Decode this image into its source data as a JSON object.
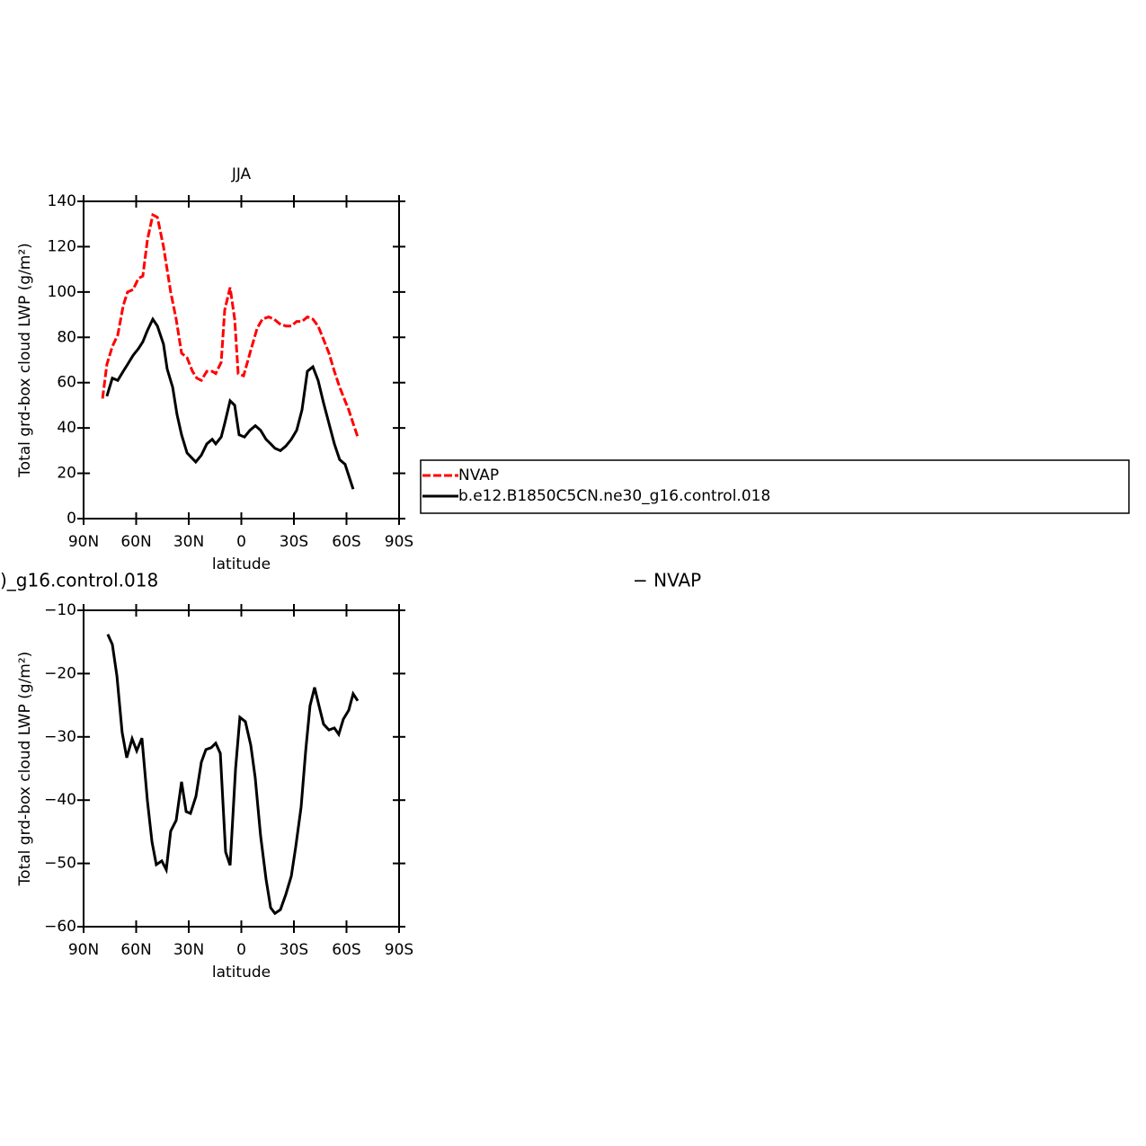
{
  "chart_data": [
    {
      "type": "line",
      "title": "JJA",
      "xlabel": "latitude",
      "ylabel": "Total grd-box cloud LWP (g/m²)",
      "xlim": [
        90,
        -90
      ],
      "xticks": [
        {
          "value": 90,
          "label": "90N"
        },
        {
          "value": 60,
          "label": "60N"
        },
        {
          "value": 30,
          "label": "30N"
        },
        0,
        {
          "value": -30,
          "label": "30S"
        },
        {
          "value": -60,
          "label": "60S"
        },
        {
          "value": -90,
          "label": "90S"
        }
      ],
      "ylim": [
        0,
        140
      ],
      "yticks": [
        0,
        20,
        40,
        60,
        80,
        100,
        120,
        140
      ],
      "legend": "right",
      "series": [
        {
          "name": "NVAP",
          "color": "#ff0000",
          "dash": true,
          "x": [
            79.2,
            76.7,
            73.6,
            70.5,
            67.4,
            64.9,
            61.8,
            58.7,
            56.2,
            53.6,
            50.5,
            47.9,
            44.4,
            40.3,
            37.2,
            34.1,
            31,
            27.9,
            25.4,
            22.8,
            19.7,
            16.6,
            14.6,
            11.5,
            9.5,
            6.4,
            3.8,
            1.8,
            -1.3,
            -4.9,
            -9,
            -12,
            -15.6,
            -18.7,
            -21.8,
            -25.4,
            -28.5,
            -31.6,
            -34.6,
            -37.7,
            -40.8,
            -43.8,
            -46.9,
            -50,
            -53.1,
            -56.1,
            -59.2,
            -61.3,
            -63.8,
            -66.4
          ],
          "values": [
            53,
            68,
            76,
            81,
            94,
            100,
            101,
            106,
            107,
            123,
            134,
            133,
            120,
            100,
            88,
            73,
            71,
            65,
            62,
            61,
            65,
            65,
            64,
            69,
            92,
            102,
            88,
            64,
            63,
            73,
            84,
            88,
            89,
            88,
            86,
            85,
            85,
            87,
            87,
            89,
            88,
            85,
            79,
            73,
            65,
            58,
            52,
            48,
            42,
            36
          ]
        },
        {
          "name": "b.e12.B1850C5CN.ne30_g16.control.018",
          "color": "#000000",
          "dash": false,
          "x": [
            76.7,
            73.6,
            70.5,
            67.4,
            64.9,
            61.8,
            58.7,
            56.2,
            53.6,
            50.5,
            47.9,
            44.4,
            42.3,
            39.2,
            36.7,
            34.1,
            31,
            28.5,
            26,
            22.8,
            19.7,
            16.6,
            14.6,
            11.5,
            9.5,
            6.4,
            3.8,
            1.3,
            -1.8,
            -4.9,
            -8,
            -11,
            -14.1,
            -16.7,
            -19.2,
            -22.3,
            -25.4,
            -28.5,
            -31.6,
            -34.6,
            -37.7,
            -40.8,
            -43.8,
            -46.9,
            -50,
            -53.1,
            -56.1,
            -59.2,
            -61.3,
            -63.8
          ],
          "values": [
            54,
            62,
            61,
            65,
            68,
            72,
            75,
            78,
            83,
            88,
            85,
            77,
            66,
            58,
            46,
            37,
            29,
            27,
            25,
            28,
            33,
            35,
            33,
            36,
            42,
            52,
            50,
            37,
            36,
            39,
            41,
            39,
            35,
            33,
            31,
            30,
            32,
            35,
            39,
            48,
            65,
            67,
            61,
            51,
            42,
            33,
            26,
            24,
            19,
            13
          ]
        }
      ]
    },
    {
      "type": "line",
      "title_left": ")_g16.control.018",
      "title_right": "− NVAP",
      "xlabel": "latitude",
      "ylabel": "Total grd-box cloud LWP (g/m²)",
      "xlim": [
        90,
        -90
      ],
      "xticks": [
        {
          "value": 90,
          "label": "90N"
        },
        {
          "value": 60,
          "label": "60N"
        },
        {
          "value": 30,
          "label": "30N"
        },
        0,
        {
          "value": -30,
          "label": "30S"
        },
        {
          "value": -60,
          "label": "60S"
        },
        {
          "value": -90,
          "label": "90S"
        }
      ],
      "ylim": [
        -60,
        -10
      ],
      "yticks": [
        {
          "value": -60,
          "label": "−60"
        },
        {
          "value": -50,
          "label": "−50"
        },
        {
          "value": -40,
          "label": "−40"
        },
        {
          "value": -30,
          "label": "−30"
        },
        {
          "value": -20,
          "label": "−20"
        },
        {
          "value": -10,
          "label": "−10"
        }
      ],
      "series": [
        {
          "color": "#000000",
          "dash": false,
          "x": [
            76.2,
            73.6,
            71,
            68,
            65.4,
            62.3,
            59.7,
            56.7,
            53.6,
            51,
            48.5,
            45.4,
            42.8,
            40.3,
            37.2,
            34.1,
            31.5,
            29,
            25.9,
            22.8,
            20.2,
            17.2,
            14.6,
            12,
            9,
            6.4,
            3.3,
            0.8,
            -2.3,
            -5.4,
            -7.9,
            -11,
            -14.1,
            -16.7,
            -19.2,
            -22.3,
            -25.4,
            -28.5,
            -31,
            -34.1,
            -36.7,
            -39.2,
            -41.8,
            -44.4,
            -46.9,
            -50,
            -53.1,
            -55.6,
            -58.2,
            -61.3,
            -63.8,
            -66.4
          ],
          "values": [
            -13.8,
            -15.4,
            -20.4,
            -29.3,
            -33.3,
            -30.3,
            -32.2,
            -30.2,
            -40.1,
            -46.6,
            -50.2,
            -49.6,
            -51,
            -44.9,
            -43.2,
            -37.1,
            -41.8,
            -42.1,
            -39.4,
            -34,
            -32,
            -31.7,
            -31,
            -32.6,
            -48.2,
            -50.3,
            -35,
            -26.9,
            -27.6,
            -31.3,
            -36.4,
            -45.6,
            -52.5,
            -57,
            -57.9,
            -57.3,
            -54.9,
            -52,
            -47.4,
            -41.1,
            -32.2,
            -25.1,
            -22.2,
            -25.2,
            -28,
            -28.9,
            -28.6,
            -29.6,
            -27.2,
            -25.8,
            -23.2,
            -24.3
          ]
        }
      ]
    }
  ]
}
